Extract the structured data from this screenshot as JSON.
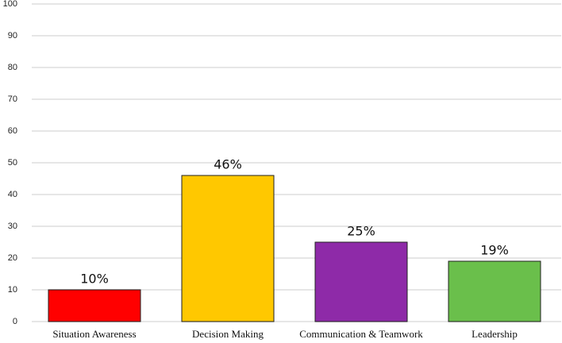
{
  "chart_data": {
    "type": "bar",
    "categories": [
      "Situation Awareness",
      "Decision Making",
      "Communication & Teamwork",
      "Leadership"
    ],
    "values": [
      10,
      46,
      25,
      19
    ],
    "value_labels": [
      "10%",
      "46%",
      "25%",
      "19%"
    ],
    "colors": [
      "#ff0000",
      "#ffc800",
      "#8e2aa8",
      "#6abf4b"
    ],
    "ylim": [
      0,
      100
    ],
    "yticks": [
      0,
      10,
      20,
      30,
      40,
      50,
      60,
      70,
      80,
      90,
      100
    ],
    "grid": true
  }
}
